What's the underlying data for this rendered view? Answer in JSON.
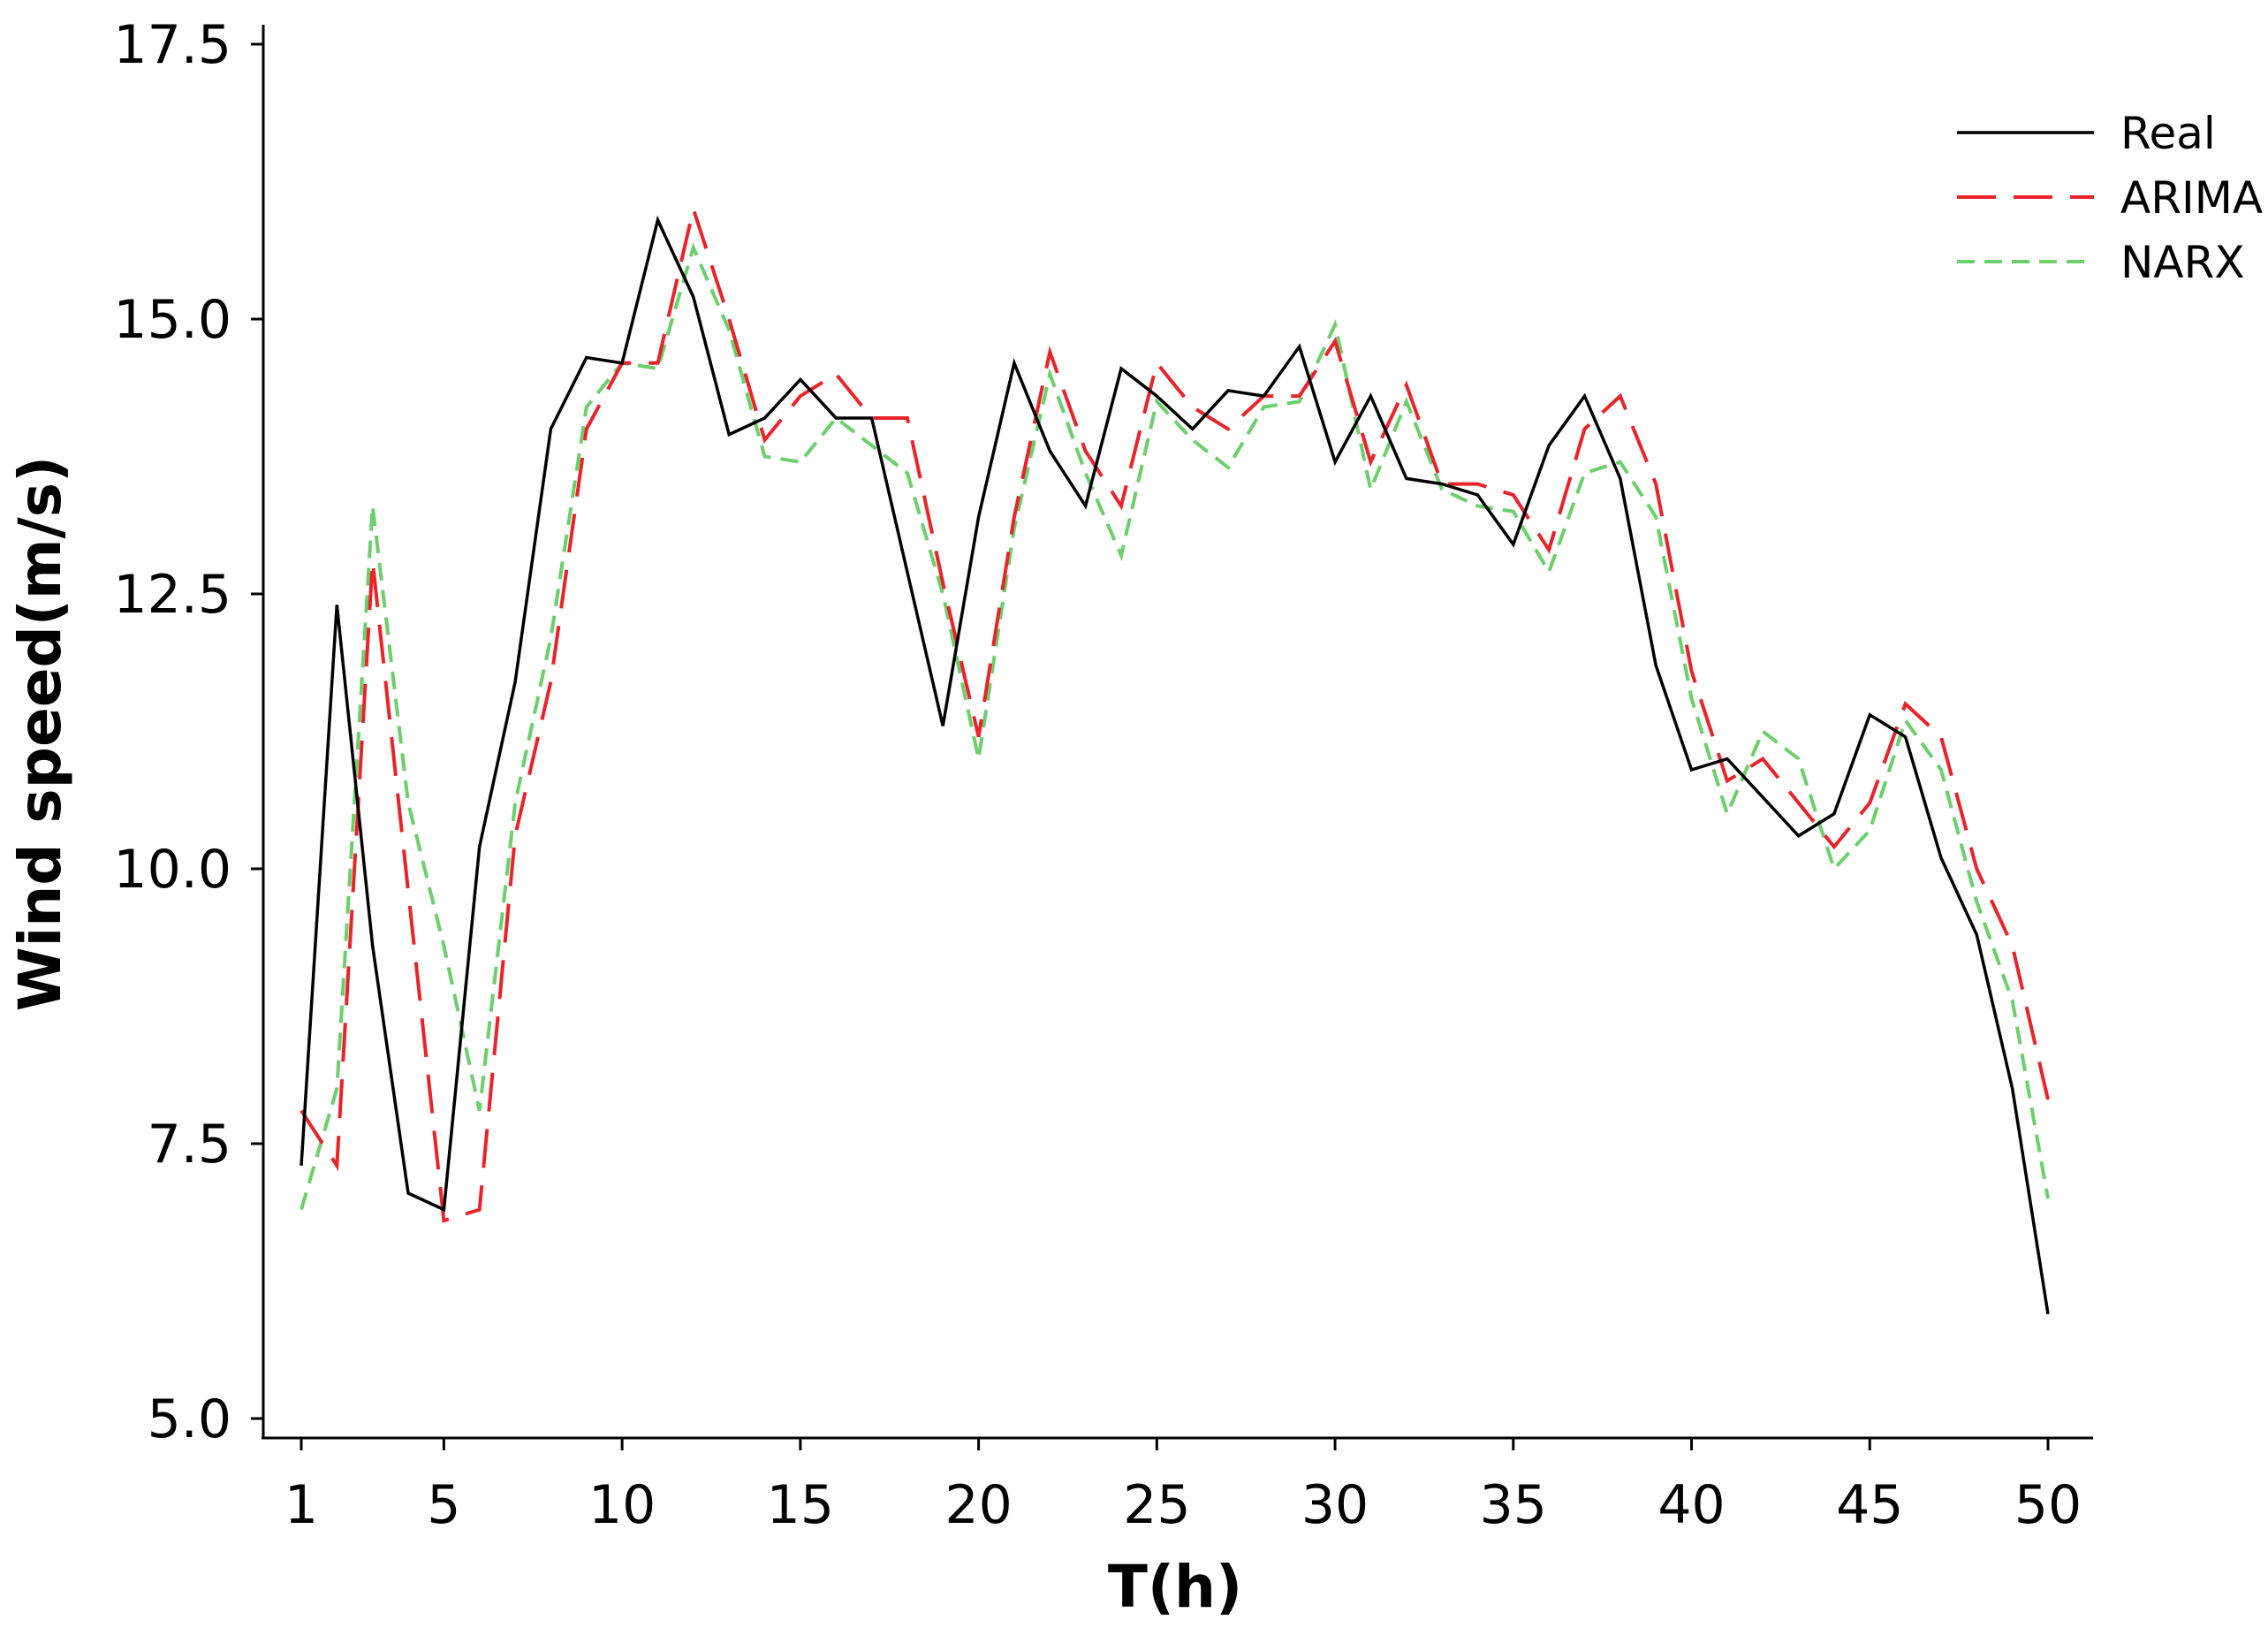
{
  "chart_data": {
    "type": "line",
    "title": "",
    "xlabel": "T(h)",
    "ylabel": "Wind speed(m/s)",
    "xlim": [
      0,
      51
    ],
    "ylim": [
      5.0,
      17.5
    ],
    "x_ticks": [
      1,
      5,
      10,
      15,
      20,
      25,
      30,
      35,
      40,
      45,
      50
    ],
    "x_tick_labels": [
      "1",
      "5",
      "10",
      "15",
      "20",
      "25",
      "30",
      "35",
      "40",
      "45",
      "50"
    ],
    "y_ticks": [
      5.0,
      7.5,
      10.0,
      12.5,
      15.0,
      17.5
    ],
    "y_tick_labels": [
      "5.0",
      "7.5",
      "10.0",
      "12.5",
      "15.0",
      "17.5"
    ],
    "grid": false,
    "legend_position": "top-right",
    "x": [
      1,
      2,
      3,
      4,
      5,
      6,
      7,
      8,
      9,
      10,
      11,
      12,
      13,
      14,
      15,
      16,
      17,
      18,
      19,
      20,
      21,
      22,
      23,
      24,
      25,
      26,
      27,
      28,
      29,
      30,
      31,
      32,
      33,
      34,
      35,
      36,
      37,
      38,
      39,
      40,
      41,
      42,
      43,
      44,
      45,
      46,
      47,
      48,
      49,
      50
    ],
    "series": [
      {
        "name": "Real",
        "color": "#000000",
        "dash": "solid",
        "values": [
          7.3,
          12.4,
          9.3,
          7.05,
          6.9,
          10.2,
          11.7,
          14.0,
          14.65,
          14.6,
          15.9,
          15.2,
          13.95,
          14.1,
          14.45,
          14.1,
          14.1,
          12.7,
          11.3,
          13.2,
          14.6,
          13.8,
          13.3,
          14.55,
          14.3,
          14.0,
          14.35,
          14.3,
          14.75,
          13.7,
          14.3,
          13.55,
          13.5,
          13.4,
          12.95,
          13.85,
          14.3,
          13.55,
          11.85,
          10.9,
          11.0,
          10.65,
          10.3,
          10.5,
          11.4,
          11.2,
          10.1,
          9.4,
          8.0,
          5.95
        ]
      },
      {
        "name": "ARIMA",
        "color": "#e8242a",
        "dash": "long-dash",
        "values": [
          7.8,
          7.3,
          12.8,
          9.8,
          6.8,
          6.9,
          10.3,
          11.7,
          14.0,
          14.6,
          14.6,
          16.0,
          15.0,
          13.9,
          14.3,
          14.5,
          14.1,
          14.1,
          12.6,
          11.2,
          13.2,
          14.7,
          13.8,
          13.3,
          14.6,
          14.2,
          14.0,
          14.3,
          14.3,
          14.8,
          13.7,
          14.4,
          13.5,
          13.5,
          13.4,
          12.9,
          14.0,
          14.3,
          13.5,
          11.8,
          10.8,
          11.0,
          10.6,
          10.2,
          10.6,
          11.5,
          11.2,
          10.0,
          9.3,
          7.9
        ]
      },
      {
        "name": "NARX",
        "color": "#6ccf6c",
        "dash": "dashed",
        "values": [
          6.9,
          8.0,
          13.3,
          10.6,
          9.3,
          7.8,
          10.6,
          12.1,
          14.2,
          14.6,
          14.55,
          15.65,
          14.9,
          13.75,
          13.7,
          14.1,
          13.85,
          13.6,
          12.5,
          11.0,
          13.1,
          14.5,
          13.6,
          12.85,
          14.25,
          13.9,
          13.65,
          14.2,
          14.25,
          14.95,
          13.45,
          14.25,
          13.45,
          13.3,
          13.25,
          12.7,
          13.6,
          13.7,
          13.2,
          11.55,
          10.5,
          11.25,
          11.0,
          10.0,
          10.35,
          11.35,
          10.9,
          9.7,
          8.8,
          7.0
        ]
      }
    ]
  }
}
